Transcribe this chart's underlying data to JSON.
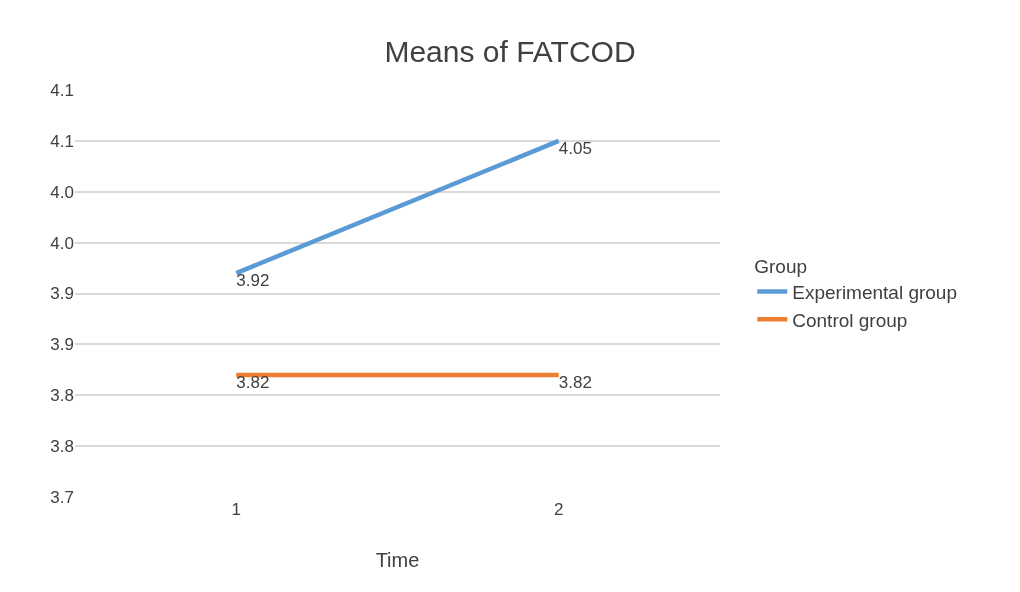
{
  "chart_data": {
    "type": "line",
    "title": "Means of FATCOD",
    "xlabel": "Time",
    "legend_title": "Group",
    "categories": [
      "1",
      "2"
    ],
    "series": [
      {
        "name": "Experimental group",
        "color": "#5b9bd5",
        "values": [
          3.92,
          4.05
        ]
      },
      {
        "name": "Control group",
        "color": "#ed7d31",
        "values": [
          3.82,
          3.82
        ]
      }
    ],
    "ylim": [
      3.7,
      4.1
    ],
    "yticks": [
      {
        "value": 3.7,
        "label": "3.7"
      },
      {
        "value": 3.75,
        "label": "3.8"
      },
      {
        "value": 3.8,
        "label": "3.8"
      },
      {
        "value": 3.85,
        "label": "3.9"
      },
      {
        "value": 3.9,
        "label": "3.9"
      },
      {
        "value": 3.95,
        "label": "4.0"
      },
      {
        "value": 4.0,
        "label": "4.0"
      },
      {
        "value": 4.05,
        "label": "4.1"
      },
      {
        "value": 4.1,
        "label": "4.1"
      }
    ],
    "grid": "y",
    "legend": "right",
    "marker": "none",
    "line_style": "solid",
    "data_labels": true
  }
}
